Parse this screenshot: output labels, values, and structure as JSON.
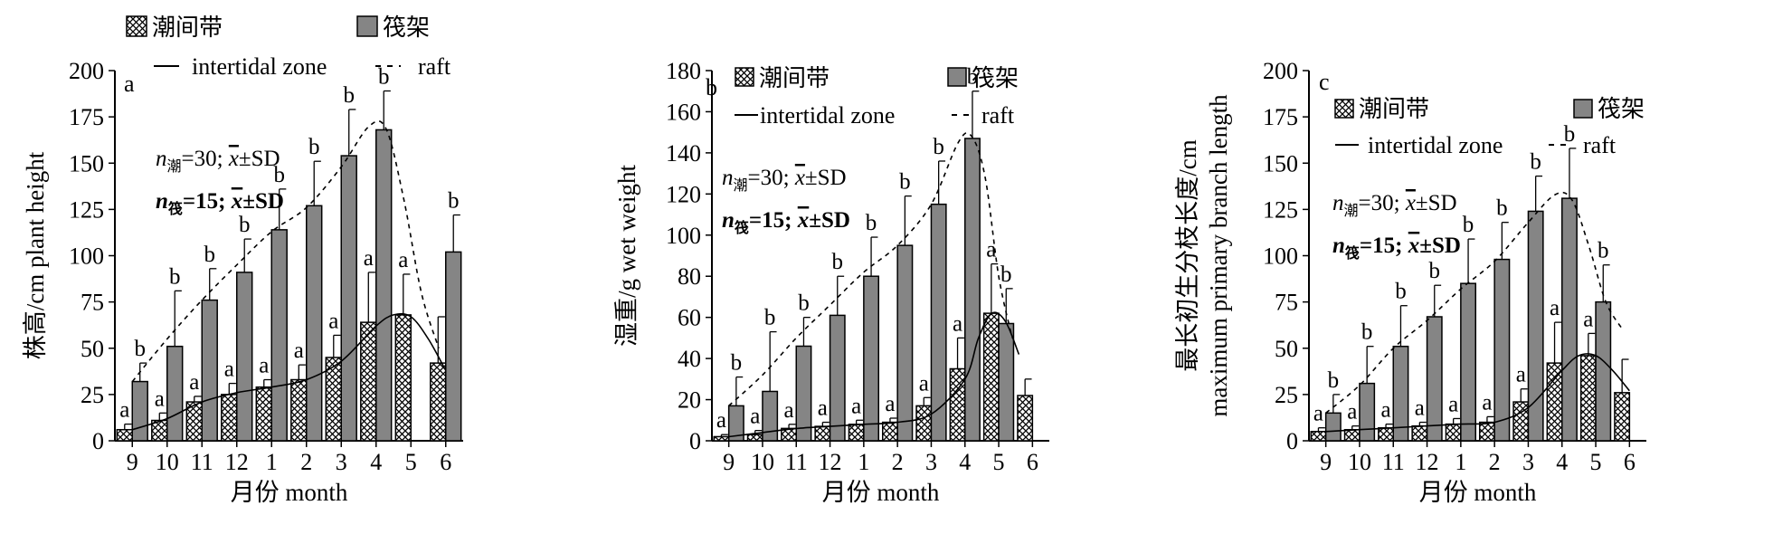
{
  "legend": {
    "intertidal_cn": "潮间带",
    "raft_cn": "筏架",
    "intertidal_en": "intertidal zone",
    "raft_en": "raft"
  },
  "stats": {
    "n_intertidal": "=30;",
    "sub_intertidal": "潮",
    "n_raft": "=15;",
    "sub_raft": "筏",
    "mean_sd": "±SD"
  },
  "colors": {
    "raft_bar": "#858585",
    "intertidal_hatch": "#000000",
    "line": "#000000"
  },
  "chart_data": [
    {
      "panel": "a",
      "type": "bar",
      "xlabel": "月份 month",
      "ylabel": "株高/cm plant height",
      "ylim": [
        0,
        200
      ],
      "yticks": [
        0,
        25,
        50,
        75,
        100,
        125,
        150,
        175,
        200
      ],
      "categories": [
        "9",
        "10",
        "11",
        "12",
        "1",
        "2",
        "3",
        "4",
        "5",
        "6"
      ],
      "series": [
        {
          "name": "潮间带",
          "values": [
            6,
            11,
            21,
            25,
            29,
            33,
            45,
            64,
            68,
            42
          ],
          "sd": [
            3,
            4,
            3,
            6,
            4,
            8,
            12,
            27,
            22,
            25
          ],
          "labels": [
            "a",
            "a",
            "a",
            "a",
            "a",
            "a",
            "a",
            "a",
            "a",
            ""
          ]
        },
        {
          "name": "筏架",
          "values": [
            32,
            51,
            76,
            91,
            114,
            127,
            154,
            168,
            null,
            102
          ],
          "sd": [
            10,
            30,
            17,
            18,
            22,
            24,
            25,
            21,
            null,
            20
          ],
          "labels": [
            "b",
            "b",
            "b",
            "b",
            "b",
            "b",
            "b",
            "b",
            "",
            "b"
          ]
        }
      ],
      "curves": [
        {
          "name": "intertidal zone",
          "style": "solid",
          "x": [
            0,
            1,
            2,
            3,
            4,
            5,
            6,
            7,
            7.5,
            8,
            8.5,
            9
          ],
          "y": [
            6,
            12,
            21,
            26,
            29,
            33,
            43,
            62,
            68,
            67,
            55,
            38
          ]
        },
        {
          "name": "raft",
          "style": "dashed",
          "x": [
            0,
            1,
            2,
            3,
            4,
            5,
            6,
            6.8,
            7.3,
            7.8,
            8.3,
            8.8
          ],
          "y": [
            32,
            55,
            76,
            95,
            113,
            126,
            148,
            170,
            168,
            130,
            80,
            50
          ]
        }
      ]
    },
    {
      "panel": "b",
      "type": "bar",
      "xlabel": "月份 month",
      "ylabel": "湿重/g wet weight",
      "ylim": [
        0,
        180
      ],
      "yticks": [
        0,
        20,
        40,
        60,
        80,
        100,
        120,
        140,
        160,
        180
      ],
      "categories": [
        "9",
        "10",
        "11",
        "12",
        "1",
        "2",
        "3",
        "4",
        "5",
        "6"
      ],
      "series": [
        {
          "name": "潮间带",
          "values": [
            2,
            3,
            6,
            7,
            8,
            9,
            17,
            35,
            62,
            22
          ],
          "sd": [
            1,
            2,
            2,
            2,
            2,
            2,
            4,
            15,
            24,
            8
          ],
          "labels": [
            "a",
            "a",
            "a",
            "a",
            "a",
            "a",
            "a",
            "a",
            "a",
            ""
          ]
        },
        {
          "name": "筏架",
          "values": [
            17,
            24,
            46,
            61,
            80,
            95,
            115,
            147,
            57,
            null
          ],
          "sd": [
            14,
            29,
            14,
            19,
            19,
            24,
            21,
            23,
            17,
            null
          ],
          "labels": [
            "b",
            "b",
            "b",
            "b",
            "b",
            "b",
            "b",
            "b",
            "b",
            ""
          ]
        }
      ],
      "curves": [
        {
          "name": "intertidal zone",
          "style": "solid",
          "x": [
            0,
            1,
            2,
            3,
            4,
            5,
            6,
            7,
            7.4,
            7.8,
            8.2,
            8.6
          ],
          "y": [
            2,
            4,
            6,
            7,
            8,
            9,
            13,
            30,
            50,
            62,
            58,
            42
          ]
        },
        {
          "name": "raft",
          "style": "dashed",
          "x": [
            0,
            1,
            2,
            3,
            4,
            5,
            6,
            6.8,
            7.2,
            7.6,
            8.0,
            8.4
          ],
          "y": [
            17,
            32,
            50,
            66,
            82,
            95,
            115,
            145,
            148,
            128,
            80,
            50
          ]
        }
      ]
    },
    {
      "panel": "c",
      "type": "bar",
      "xlabel": "月份 month",
      "ylabel_cn": "最长初生分枝长度/cm",
      "ylabel_en": "maximum primary branch length",
      "ylim": [
        0,
        200
      ],
      "yticks": [
        0,
        25,
        50,
        75,
        100,
        125,
        150,
        175,
        200
      ],
      "categories": [
        "9",
        "10",
        "11",
        "12",
        "1",
        "2",
        "3",
        "4",
        "5",
        "6"
      ],
      "series": [
        {
          "name": "潮间带",
          "values": [
            5,
            6,
            7,
            8,
            9,
            10,
            21,
            42,
            46,
            26
          ],
          "sd": [
            2,
            2,
            2,
            2,
            3,
            3,
            7,
            22,
            12,
            18
          ],
          "labels": [
            "a",
            "a",
            "a",
            "a",
            "a",
            "a",
            "a",
            "a",
            "a",
            ""
          ]
        },
        {
          "name": "筏架",
          "values": [
            15,
            31,
            51,
            67,
            85,
            98,
            124,
            131,
            75,
            null
          ],
          "sd": [
            10,
            20,
            22,
            17,
            24,
            20,
            19,
            27,
            20,
            null
          ],
          "labels": [
            "b",
            "b",
            "b",
            "b",
            "b",
            "b",
            "b",
            "b",
            "b",
            ""
          ]
        }
      ],
      "curves": [
        {
          "name": "intertidal zone",
          "style": "solid",
          "x": [
            0,
            1,
            2,
            3,
            4,
            5,
            6,
            7,
            7.5,
            8,
            8.5,
            9
          ],
          "y": [
            5,
            6,
            7,
            8,
            9,
            10,
            18,
            38,
            46,
            46,
            38,
            27
          ]
        },
        {
          "name": "raft",
          "style": "dashed",
          "x": [
            0,
            1,
            2,
            3,
            4,
            5,
            6,
            6.8,
            7.3,
            7.8,
            8.3,
            8.8
          ],
          "y": [
            15,
            30,
            50,
            65,
            82,
            97,
            118,
            133,
            130,
            105,
            75,
            60
          ]
        }
      ]
    }
  ]
}
